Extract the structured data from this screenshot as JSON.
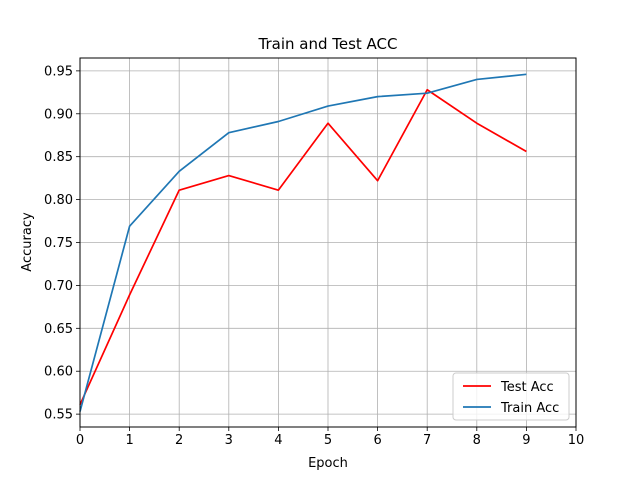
{
  "chart_data": {
    "type": "line",
    "title": "Train and Test ACC",
    "xlabel": "Epoch",
    "ylabel": "Accuracy",
    "xlim": [
      0,
      10
    ],
    "ylim": [
      0.535,
      0.965
    ],
    "xticks": [
      0,
      1,
      2,
      3,
      4,
      5,
      6,
      7,
      8,
      9,
      10
    ],
    "yticks": [
      0.55,
      0.6,
      0.65,
      0.7,
      0.75,
      0.8,
      0.85,
      0.9,
      0.95
    ],
    "ytick_labels": [
      "0.55",
      "0.60",
      "0.65",
      "0.70",
      "0.75",
      "0.80",
      "0.85",
      "0.90",
      "0.95"
    ],
    "grid": true,
    "legend_position": "lower-right",
    "x": [
      0,
      1,
      2,
      3,
      4,
      5,
      6,
      7,
      8,
      9
    ],
    "series": [
      {
        "name": "Test Acc",
        "color": "#ff0000",
        "values": [
          0.561,
          0.689,
          0.811,
          0.828,
          0.811,
          0.889,
          0.822,
          0.928,
          0.889,
          0.856
        ]
      },
      {
        "name": "Train Acc",
        "color": "#1f77b4",
        "values": [
          0.553,
          0.769,
          0.833,
          0.878,
          0.891,
          0.909,
          0.92,
          0.924,
          0.94,
          0.946
        ]
      }
    ]
  }
}
